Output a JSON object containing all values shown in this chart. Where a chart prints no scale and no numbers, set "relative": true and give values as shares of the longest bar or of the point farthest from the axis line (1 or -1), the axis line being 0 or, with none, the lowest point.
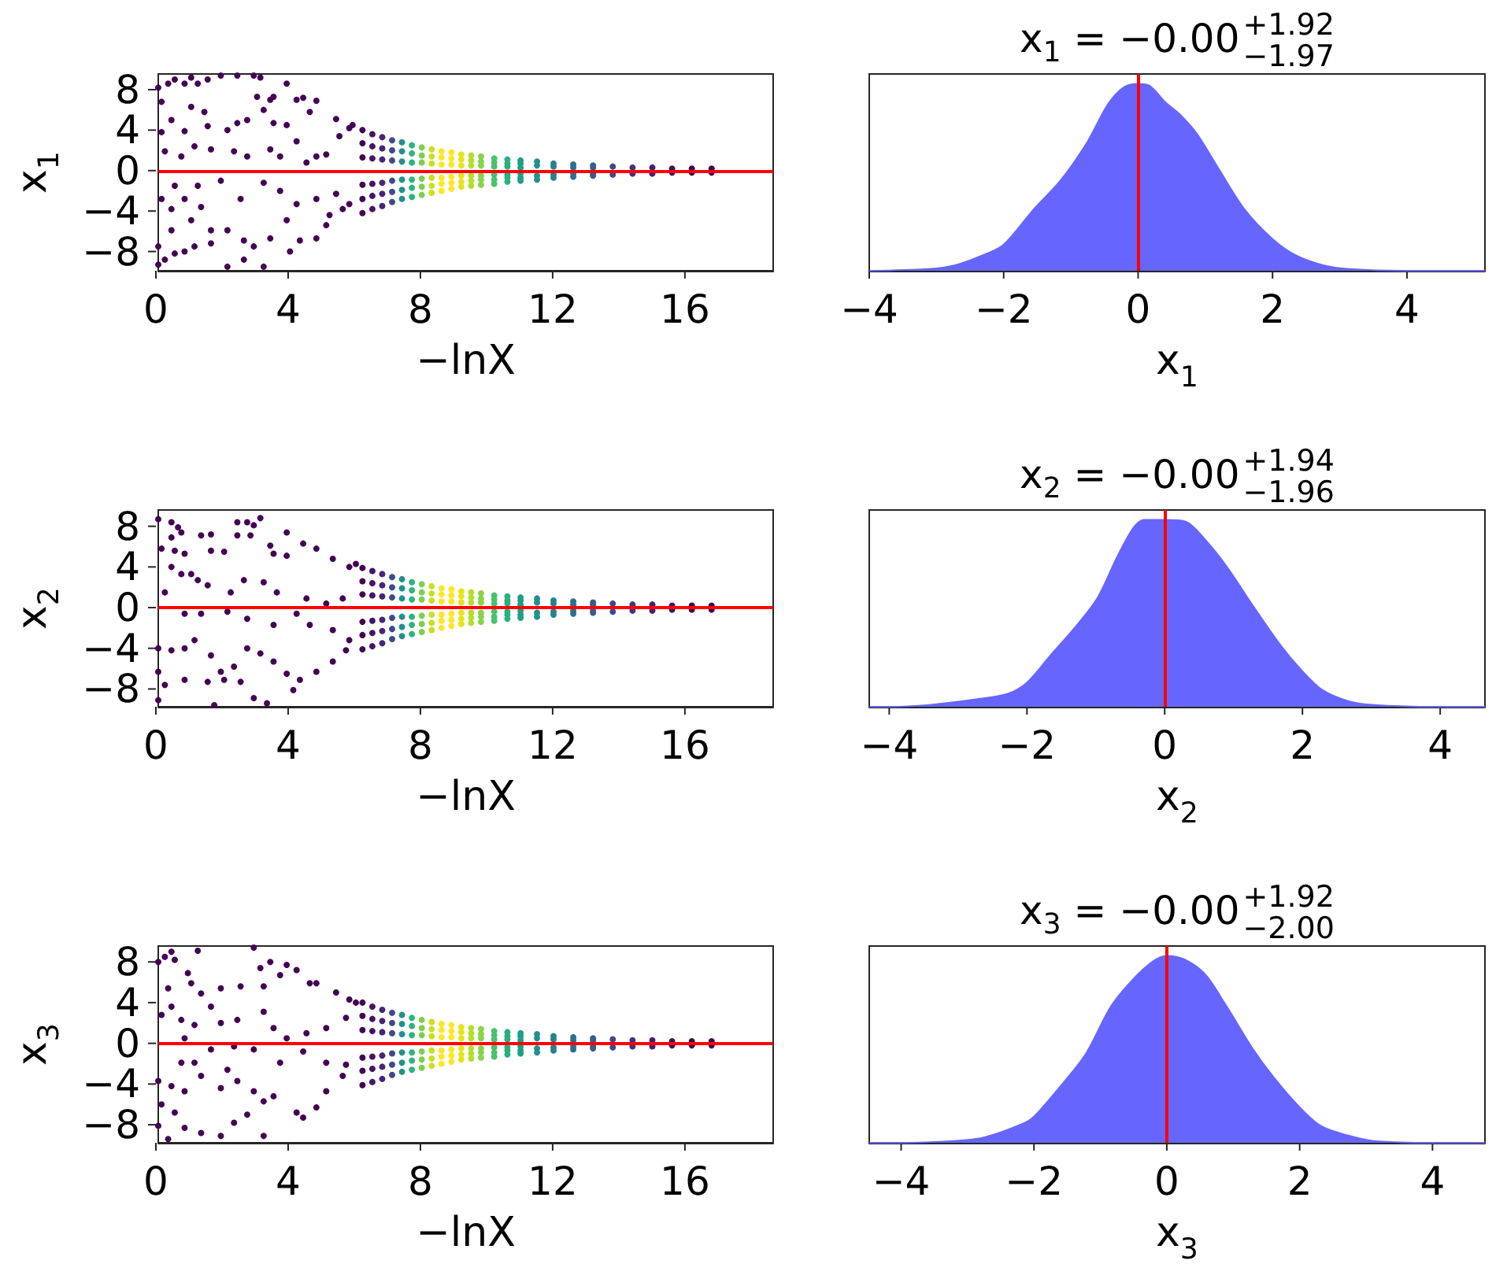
{
  "chart_data": [
    {
      "type": "scatter",
      "xlabel": "−lnX",
      "ylabel": "x$_{1}$",
      "xlim": [
        0,
        18.67
      ],
      "xticks": [
        0,
        4,
        8,
        12,
        16
      ],
      "ylim": [
        -9.9,
        9.55
      ],
      "yticks": [
        -8,
        -4,
        0,
        4,
        8
      ],
      "marker": "circle",
      "ref_lines": [
        {
          "axis": "y",
          "value": 0,
          "color": "#ff0000"
        }
      ],
      "series": [
        {
          "color": "#440154",
          "x": [
            0.0,
            0.1,
            0.3,
            0.5,
            0.8,
            1.0,
            1.2,
            1.5,
            1.9,
            2.4,
            2.9,
            3.1,
            3.0,
            3.4,
            3.5,
            3.9,
            4.2,
            4.4,
            4.8,
            4.6,
            5.4,
            5.8,
            5.9,
            0.1,
            0.4,
            0.8,
            1.0,
            1.4,
            1.5,
            2.1,
            2.4,
            2.7,
            3.2,
            3.5,
            3.9,
            4.2,
            4.8,
            5.1,
            5.5,
            0.2,
            0.7,
            1.1,
            1.6,
            2.3,
            2.7,
            3.4,
            3.7,
            4.5,
            0.1,
            0.4,
            0.8,
            1.3,
            0.5,
            1.2,
            1.9,
            2.5,
            3.2,
            3.7,
            4.2,
            4.8,
            5.4,
            5.8,
            1.0,
            1.6,
            2.1,
            2.6,
            2.9,
            3.4,
            3.9,
            4.3,
            4.8,
            5.1,
            0.4,
            0.0,
            0.2,
            0.5,
            0.8,
            0.0,
            2.1,
            2.6,
            3.2,
            4.0,
            1.6,
            1.1,
            5.2,
            5.6
          ],
          "values": [
            8.2,
            6.8,
            8.6,
            9.0,
            8.6,
            9.2,
            8.6,
            9.0,
            9.4,
            9.4,
            9.4,
            9.2,
            7.3,
            7.0,
            7.3,
            8.6,
            7.0,
            7.2,
            6.9,
            5.8,
            5.1,
            4.2,
            4.5,
            3.8,
            5.0,
            3.9,
            6.3,
            5.8,
            4.4,
            4.0,
            4.7,
            5.0,
            6.0,
            4.7,
            4.5,
            2.9,
            1.4,
            1.6,
            3.4,
            1.9,
            1.4,
            2.4,
            2.1,
            1.9,
            1.4,
            2.1,
            1.4,
            0.8,
            -2.8,
            -3.8,
            -2.8,
            -3.6,
            -1.5,
            -1.5,
            -1.0,
            -2.8,
            -1.2,
            -2.0,
            -3.3,
            -2.8,
            -2.3,
            -3.3,
            -4.9,
            -5.9,
            -5.9,
            -6.9,
            -7.5,
            -6.7,
            -4.9,
            -6.9,
            -6.7,
            -5.4,
            -5.9,
            -7.5,
            -8.8,
            -8.2,
            -8.0,
            -9.3,
            -9.5,
            -8.8,
            -9.5,
            -8.0,
            -7.2,
            -7.5,
            -4.4,
            -3.8
          ]
        },
        {
          "x": [
            6.2,
            6.2,
            6.2,
            6.2,
            6.2,
            6.2,
            6.5,
            6.5,
            6.5,
            6.5,
            6.5,
            6.5,
            6.8,
            6.8,
            6.8,
            6.8,
            6.8,
            6.8,
            7.1,
            7.1,
            7.1,
            7.1,
            7.1,
            7.1,
            7.4,
            7.4,
            7.4,
            7.4,
            7.4,
            7.4,
            7.7,
            7.7,
            7.7,
            7.7,
            7.7,
            7.7,
            8.0,
            8.0,
            8.0,
            8.0,
            8.0,
            8.0,
            8.3,
            8.3,
            8.3,
            8.3,
            8.3,
            8.3,
            8.6,
            8.6,
            8.6,
            8.6,
            8.6,
            8.6,
            8.9,
            8.9,
            8.9,
            8.9,
            8.9,
            8.9,
            9.2,
            9.2,
            9.2,
            9.2,
            9.2,
            9.2,
            9.5,
            9.5,
            9.5,
            9.5,
            9.5,
            9.5,
            9.8,
            9.8,
            9.8,
            9.8,
            9.8,
            9.8,
            10.2,
            10.2,
            10.2,
            10.2,
            10.2,
            10.2,
            10.6,
            10.6,
            10.6,
            10.6,
            10.6,
            10.6,
            11.0,
            11.0,
            11.0,
            11.0,
            11.0,
            11.0,
            11.5,
            11.5,
            11.5,
            11.5,
            12.0,
            12.0,
            12.0,
            12.0,
            12.6,
            12.6,
            12.6,
            12.6,
            13.2,
            13.2,
            13.2,
            13.2,
            13.8,
            13.8,
            14.4,
            14.4,
            15.0,
            15.0,
            15.6,
            15.6,
            16.2,
            16.2,
            16.8,
            16.8
          ],
          "values": [
            4.0,
            2.7,
            1.3,
            -1.4,
            -2.8,
            -4.2,
            3.6,
            2.4,
            1.2,
            -1.3,
            -2.5,
            -3.8,
            3.3,
            2.2,
            1.1,
            -1.2,
            -2.3,
            -3.5,
            3.0,
            2.0,
            1.0,
            -1.0,
            -2.1,
            -3.1,
            2.8,
            1.9,
            0.9,
            -0.9,
            -1.9,
            -2.8,
            2.5,
            1.7,
            0.8,
            -0.9,
            -1.7,
            -2.6,
            2.3,
            1.5,
            0.8,
            -0.8,
            -1.6,
            -2.4,
            2.1,
            1.4,
            0.7,
            -0.7,
            -1.5,
            -2.2,
            1.9,
            1.3,
            0.6,
            -0.7,
            -1.3,
            -2.0,
            1.8,
            1.2,
            0.6,
            -0.6,
            -1.2,
            -1.8,
            1.6,
            1.1,
            0.5,
            -0.5,
            -1.1,
            -1.6,
            1.5,
            1.0,
            0.5,
            -0.5,
            -1.0,
            -1.5,
            1.4,
            0.9,
            0.5,
            -0.5,
            -0.9,
            -1.4,
            1.2,
            0.8,
            0.4,
            -0.4,
            -0.9,
            -1.3,
            1.1,
            0.7,
            0.4,
            -0.4,
            -0.7,
            -1.1,
            1.0,
            0.7,
            0.3,
            -0.3,
            -0.7,
            -1.0,
            0.9,
            0.5,
            -0.5,
            -0.9,
            0.7,
            0.4,
            -0.4,
            -0.7,
            0.6,
            0.3,
            -0.3,
            -0.6,
            0.5,
            0.3,
            -0.3,
            -0.5,
            0.4,
            -0.4,
            0.3,
            -0.3,
            0.3,
            -0.3,
            0.2,
            -0.2,
            0.2,
            -0.2,
            0.2,
            -0.2
          ],
          "colors": [
            "#440154",
            "#440154",
            "#440154",
            "#440154",
            "#440154",
            "#440154",
            "#471365",
            "#471365",
            "#471365",
            "#471365",
            "#471365",
            "#471365",
            "#482475",
            "#482475",
            "#482475",
            "#482475",
            "#482475",
            "#482475",
            "#3e4a89",
            "#3e4a89",
            "#3e4a89",
            "#3e4a89",
            "#3e4a89",
            "#3e4a89",
            "#21918c",
            "#21918c",
            "#21918c",
            "#21918c",
            "#21918c",
            "#21918c",
            "#2fb47c",
            "#2fb47c",
            "#2fb47c",
            "#2fb47c",
            "#2fb47c",
            "#2fb47c",
            "#7ad151",
            "#7ad151",
            "#7ad151",
            "#7ad151",
            "#7ad151",
            "#7ad151",
            "#c8e020",
            "#c8e020",
            "#c8e020",
            "#c8e020",
            "#c8e020",
            "#c8e020",
            "#fde725",
            "#fde725",
            "#fde725",
            "#fde725",
            "#fde725",
            "#fde725",
            "#fde725",
            "#fde725",
            "#fde725",
            "#fde725",
            "#fde725",
            "#fde725",
            "#e5e419",
            "#e5e419",
            "#e5e419",
            "#e5e419",
            "#e5e419",
            "#e5e419",
            "#b5de2b",
            "#b5de2b",
            "#b5de2b",
            "#b5de2b",
            "#b5de2b",
            "#b5de2b",
            "#86d549",
            "#86d549",
            "#86d549",
            "#86d549",
            "#86d549",
            "#86d549",
            "#4ac16d",
            "#4ac16d",
            "#4ac16d",
            "#4ac16d",
            "#4ac16d",
            "#4ac16d",
            "#2ab07f",
            "#2ab07f",
            "#2ab07f",
            "#2ab07f",
            "#2ab07f",
            "#2ab07f",
            "#1f9e89",
            "#1f9e89",
            "#1f9e89",
            "#1f9e89",
            "#1f9e89",
            "#1f9e89",
            "#21918c",
            "#21918c",
            "#21918c",
            "#21918c",
            "#26828e",
            "#26828e",
            "#26828e",
            "#26828e",
            "#2d708e",
            "#2d708e",
            "#2d708e",
            "#2d708e",
            "#365d8d",
            "#365d8d",
            "#365d8d",
            "#365d8d",
            "#3e4989",
            "#3e4989",
            "#46327e",
            "#46327e",
            "#481f70",
            "#481f70",
            "#470d60",
            "#470d60",
            "#440154",
            "#440154",
            "#440154",
            "#440154"
          ]
        }
      ]
    },
    {
      "type": "area",
      "title": "x$_{1}$ = −0.00$^{+1.92}$$_{−1.97}$",
      "xlabel": "x$_{1}$",
      "xlim": [
        -4.0,
        5.16
      ],
      "xticks": [
        -4,
        -2,
        0,
        2,
        4
      ],
      "relative": true,
      "tick_labels": "x",
      "ref_lines": [
        {
          "axis": "x",
          "value": 0,
          "color": "#ff0000"
        }
      ],
      "color": "#6666ff",
      "x": [
        -4.0,
        -3.11,
        -2.72,
        -2.33,
        -2.0,
        -1.55,
        -1.16,
        -0.77,
        -0.45,
        -0.22,
        0,
        0.17,
        0.41,
        0.64,
        0.88,
        1.19,
        1.58,
        2.0,
        2.36,
        2.75,
        3.14,
        4.0,
        5.16
      ],
      "values": [
        0,
        0.01,
        0.03,
        0.08,
        0.14,
        0.33,
        0.48,
        0.68,
        0.89,
        0.98,
        1,
        0.99,
        0.9,
        0.83,
        0.73,
        0.55,
        0.33,
        0.17,
        0.08,
        0.03,
        0.01,
        0,
        0
      ]
    },
    {
      "type": "scatter",
      "xlabel": "−lnX",
      "ylabel": "x$_{2}$",
      "xlim": [
        0,
        18.67
      ],
      "xticks": [
        0,
        4,
        8,
        12,
        16
      ],
      "ylim": [
        -9.75,
        9.6
      ],
      "yticks": [
        -8,
        -4,
        0,
        4,
        8
      ],
      "marker": "circle",
      "ref_lines": [
        {
          "axis": "y",
          "value": 0,
          "color": "#ff0000"
        }
      ],
      "series": [
        {
          "color": "#440154",
          "x": [
            0.0,
            0.4,
            0.6,
            0.7,
            0.4,
            0.1,
            0.5,
            0.8,
            1.3,
            1.6,
            1.6,
            2.0,
            2.4,
            2.7,
            2.9,
            3.1,
            2.4,
            2.8,
            3.4,
            3.5,
            3.9,
            3.9,
            4.4,
            4.8,
            5.3,
            5.8,
            6.0,
            0.4,
            0.7,
            1.0,
            1.2,
            1.5,
            2.2,
            2.6,
            3.2,
            3.6,
            4.5,
            5.1,
            5.6,
            0.2,
            0.8,
            1.3,
            2.1,
            2.7,
            3.5,
            4.2,
            4.6,
            5.3,
            5.8,
            0.0,
            0.4,
            0.8,
            1.1,
            1.6,
            1.9,
            2.3,
            2.7,
            3.1,
            3.5,
            3.9,
            4.3,
            4.8,
            5.3,
            5.7,
            0.0,
            0.2,
            0.8,
            1.5,
            2.0,
            2.5,
            2.9,
            3.3,
            1.7,
            0.0,
            4.1
          ],
          "values": [
            8.7,
            8.4,
            7.9,
            7.4,
            6.9,
            5.8,
            5.6,
            5.3,
            7.1,
            7.2,
            5.6,
            5.5,
            8.4,
            8.4,
            8.1,
            8.8,
            7.1,
            7.1,
            6.1,
            5.3,
            7.4,
            5.1,
            6.3,
            5.8,
            4.8,
            4.0,
            4.3,
            4.0,
            3.3,
            3.3,
            2.7,
            2.2,
            1.5,
            2.7,
            2.5,
            1.5,
            0.9,
            0.4,
            0.9,
            1.5,
            -0.6,
            -0.6,
            -0.4,
            -1.1,
            -1.7,
            -0.6,
            -1.7,
            -2.2,
            -3.2,
            -4.0,
            -4.2,
            -4.0,
            -3.2,
            -4.7,
            -6.3,
            -5.8,
            -4.0,
            -4.5,
            -5.3,
            -6.5,
            -7.1,
            -6.3,
            -5.3,
            -4.2,
            -6.3,
            -7.6,
            -7.1,
            -7.3,
            -7.1,
            -7.3,
            -8.9,
            -9.4,
            -9.6,
            -9.1,
            -8.1
          ]
        },
        {
          "x": [
            6.2,
            6.2,
            6.2,
            6.2,
            6.2,
            6.2,
            6.5,
            6.5,
            6.5,
            6.5,
            6.5,
            6.5,
            6.8,
            6.8,
            6.8,
            6.8,
            6.8,
            6.8,
            7.1,
            7.1,
            7.1,
            7.1,
            7.1,
            7.1,
            7.4,
            7.4,
            7.4,
            7.4,
            7.4,
            7.4,
            7.7,
            7.7,
            7.7,
            7.7,
            7.7,
            7.7,
            8.0,
            8.0,
            8.0,
            8.0,
            8.0,
            8.0,
            8.3,
            8.3,
            8.3,
            8.3,
            8.3,
            8.3,
            8.6,
            8.6,
            8.6,
            8.6,
            8.6,
            8.6,
            8.9,
            8.9,
            8.9,
            8.9,
            8.9,
            8.9,
            9.2,
            9.2,
            9.2,
            9.2,
            9.2,
            9.2,
            9.5,
            9.5,
            9.5,
            9.5,
            9.5,
            9.5,
            9.8,
            9.8,
            9.8,
            9.8,
            9.8,
            9.8,
            10.2,
            10.2,
            10.2,
            10.2,
            10.2,
            10.2,
            10.6,
            10.6,
            10.6,
            10.6,
            10.6,
            10.6,
            11.0,
            11.0,
            11.0,
            11.0,
            11.0,
            11.0,
            11.5,
            11.5,
            11.5,
            11.5,
            12.0,
            12.0,
            12.0,
            12.0,
            12.6,
            12.6,
            12.6,
            12.6,
            13.2,
            13.2,
            13.2,
            13.2,
            13.8,
            13.8,
            14.4,
            14.4,
            15.0,
            15.0,
            15.6,
            15.6,
            16.2,
            16.2,
            16.8,
            16.8
          ],
          "values": [
            3.9,
            2.6,
            1.3,
            -1.4,
            -2.7,
            -4.1,
            3.6,
            2.4,
            1.2,
            -1.3,
            -2.5,
            -3.8,
            3.3,
            2.2,
            1.1,
            -1.2,
            -2.3,
            -3.5,
            3.0,
            2.0,
            1.0,
            -1.0,
            -2.1,
            -3.1,
            2.8,
            1.9,
            0.9,
            -0.9,
            -1.9,
            -2.8,
            2.5,
            1.7,
            0.8,
            -0.9,
            -1.7,
            -2.6,
            2.3,
            1.5,
            0.8,
            -0.8,
            -1.6,
            -2.4,
            2.1,
            1.4,
            0.7,
            -0.7,
            -1.5,
            -2.2,
            1.9,
            1.3,
            0.6,
            -0.7,
            -1.3,
            -2.0,
            1.8,
            1.2,
            0.6,
            -0.6,
            -1.2,
            -1.8,
            1.6,
            1.1,
            0.5,
            -0.5,
            -1.1,
            -1.6,
            1.5,
            1.0,
            0.5,
            -0.5,
            -1.0,
            -1.5,
            1.4,
            0.9,
            0.5,
            -0.5,
            -0.9,
            -1.4,
            1.2,
            0.8,
            0.4,
            -0.4,
            -0.9,
            -1.3,
            1.1,
            0.7,
            0.4,
            -0.4,
            -0.7,
            -1.1,
            1.0,
            0.7,
            0.3,
            -0.3,
            -0.7,
            -1.0,
            0.9,
            0.5,
            -0.5,
            -0.9,
            0.7,
            0.4,
            -0.4,
            -0.7,
            0.6,
            0.3,
            -0.3,
            -0.6,
            0.5,
            0.3,
            -0.3,
            -0.5,
            0.4,
            -0.4,
            0.3,
            -0.3,
            0.3,
            -0.3,
            0.2,
            -0.2,
            0.2,
            -0.2,
            0.2,
            -0.2
          ],
          "colors": [
            "#440154",
            "#440154",
            "#440154",
            "#440154",
            "#440154",
            "#440154",
            "#471365",
            "#471365",
            "#471365",
            "#471365",
            "#471365",
            "#471365",
            "#482475",
            "#482475",
            "#482475",
            "#482475",
            "#482475",
            "#482475",
            "#3e4a89",
            "#3e4a89",
            "#3e4a89",
            "#3e4a89",
            "#3e4a89",
            "#3e4a89",
            "#21918c",
            "#21918c",
            "#21918c",
            "#21918c",
            "#21918c",
            "#21918c",
            "#2fb47c",
            "#2fb47c",
            "#2fb47c",
            "#2fb47c",
            "#2fb47c",
            "#2fb47c",
            "#7ad151",
            "#7ad151",
            "#7ad151",
            "#7ad151",
            "#7ad151",
            "#7ad151",
            "#c8e020",
            "#c8e020",
            "#c8e020",
            "#c8e020",
            "#c8e020",
            "#c8e020",
            "#fde725",
            "#fde725",
            "#fde725",
            "#fde725",
            "#fde725",
            "#fde725",
            "#fde725",
            "#fde725",
            "#fde725",
            "#fde725",
            "#fde725",
            "#fde725",
            "#e5e419",
            "#e5e419",
            "#e5e419",
            "#e5e419",
            "#e5e419",
            "#e5e419",
            "#b5de2b",
            "#b5de2b",
            "#b5de2b",
            "#b5de2b",
            "#b5de2b",
            "#b5de2b",
            "#86d549",
            "#86d549",
            "#86d549",
            "#86d549",
            "#86d549",
            "#86d549",
            "#4ac16d",
            "#4ac16d",
            "#4ac16d",
            "#4ac16d",
            "#4ac16d",
            "#4ac16d",
            "#2ab07f",
            "#2ab07f",
            "#2ab07f",
            "#2ab07f",
            "#2ab07f",
            "#2ab07f",
            "#1f9e89",
            "#1f9e89",
            "#1f9e89",
            "#1f9e89",
            "#1f9e89",
            "#1f9e89",
            "#21918c",
            "#21918c",
            "#21918c",
            "#21918c",
            "#26828e",
            "#26828e",
            "#26828e",
            "#26828e",
            "#2d708e",
            "#2d708e",
            "#2d708e",
            "#2d708e",
            "#365d8d",
            "#365d8d",
            "#365d8d",
            "#365d8d",
            "#3e4989",
            "#3e4989",
            "#46327e",
            "#46327e",
            "#481f70",
            "#481f70",
            "#470d60",
            "#470d60",
            "#440154",
            "#440154",
            "#440154",
            "#440154"
          ]
        }
      ]
    },
    {
      "type": "area",
      "title": "x$_{2}$ = −0.00$^{+1.94}$$_{−1.96}$",
      "xlabel": "x$_{2}$",
      "xlim": [
        -4.29,
        4.65
      ],
      "xticks": [
        -4,
        -2,
        0,
        2,
        4
      ],
      "relative": true,
      "tick_labels": "x",
      "ref_lines": [
        {
          "axis": "x",
          "value": 0,
          "color": "#ff0000"
        }
      ],
      "color": "#6666ff",
      "x": [
        -4.29,
        -3.99,
        -3.42,
        -2.74,
        -2.28,
        -2.0,
        -1.67,
        -1.29,
        -0.98,
        -0.68,
        -0.45,
        -0.3,
        0,
        0.31,
        0.62,
        0.92,
        1.3,
        1.68,
        2.0,
        2.29,
        2.67,
        3.05,
        4.0,
        4.65
      ],
      "values": [
        0,
        0,
        0.01,
        0.04,
        0.07,
        0.13,
        0.27,
        0.43,
        0.58,
        0.81,
        0.96,
        1,
        1,
        0.99,
        0.88,
        0.74,
        0.53,
        0.33,
        0.19,
        0.09,
        0.03,
        0.01,
        0,
        0
      ]
    },
    {
      "type": "scatter",
      "xlabel": "−lnX",
      "ylabel": "x$_{3}$",
      "xlim": [
        0,
        18.67
      ],
      "xticks": [
        0,
        4,
        8,
        12,
        16
      ],
      "ylim": [
        -9.77,
        9.56
      ],
      "yticks": [
        -8,
        -4,
        0,
        4,
        8
      ],
      "marker": "circle",
      "ref_lines": [
        {
          "axis": "y",
          "value": 0,
          "color": "#ff0000"
        }
      ],
      "series": [
        {
          "color": "#440154",
          "x": [
            0.0,
            0.2,
            0.4,
            0.5,
            0.3,
            0.4,
            0.9,
            1.0,
            1.2,
            1.3,
            1.6,
            1.9,
            2.5,
            2.9,
            3.1,
            3.2,
            3.4,
            3.7,
            3.9,
            4.2,
            4.6,
            4.8,
            5.4,
            5.8,
            6.0,
            0.1,
            0.7,
            1.1,
            1.9,
            2.4,
            3.2,
            3.5,
            3.9,
            4.5,
            5.1,
            5.7,
            0.8,
            1.6,
            2.3,
            2.9,
            3.7,
            4.4,
            5.1,
            5.7,
            0.7,
            1.1,
            0.0,
            0.4,
            0.8,
            1.3,
            1.9,
            2.1,
            2.4,
            2.9,
            3.2,
            3.5,
            4.2,
            4.4,
            4.8,
            5.1,
            5.6,
            0.1,
            0.5,
            0.0,
            0.8,
            1.3,
            1.9,
            2.3,
            3.2,
            0.3,
            2.7
          ],
          "values": [
            8.0,
            8.5,
            9.0,
            8.2,
            5.4,
            3.6,
            6.9,
            5.9,
            9.1,
            4.9,
            3.6,
            5.4,
            5.6,
            9.4,
            7.4,
            5.6,
            8.0,
            6.7,
            7.7,
            7.2,
            5.9,
            5.9,
            5.0,
            4.3,
            4.0,
            2.8,
            2.3,
            1.8,
            2.0,
            2.3,
            3.1,
            1.5,
            0.5,
            1.0,
            1.5,
            2.5,
            0.5,
            -0.6,
            -0.3,
            -0.6,
            -1.9,
            -0.8,
            -1.9,
            -2.1,
            -1.9,
            -1.9,
            -3.7,
            -4.2,
            -4.7,
            -3.2,
            -4.4,
            -2.6,
            -3.7,
            -4.7,
            -5.7,
            -5.2,
            -6.8,
            -7.3,
            -6.3,
            -4.7,
            -3.2,
            -6.0,
            -6.8,
            -8.1,
            -8.3,
            -8.8,
            -9.1,
            -7.8,
            -9.1,
            -9.4,
            -7.0
          ]
        },
        {
          "x": [
            6.2,
            6.2,
            6.2,
            6.2,
            6.2,
            6.2,
            6.5,
            6.5,
            6.5,
            6.5,
            6.5,
            6.5,
            6.8,
            6.8,
            6.8,
            6.8,
            6.8,
            6.8,
            7.1,
            7.1,
            7.1,
            7.1,
            7.1,
            7.1,
            7.4,
            7.4,
            7.4,
            7.4,
            7.4,
            7.4,
            7.7,
            7.7,
            7.7,
            7.7,
            7.7,
            7.7,
            8.0,
            8.0,
            8.0,
            8.0,
            8.0,
            8.0,
            8.3,
            8.3,
            8.3,
            8.3,
            8.3,
            8.3,
            8.6,
            8.6,
            8.6,
            8.6,
            8.6,
            8.6,
            8.9,
            8.9,
            8.9,
            8.9,
            8.9,
            8.9,
            9.2,
            9.2,
            9.2,
            9.2,
            9.2,
            9.2,
            9.5,
            9.5,
            9.5,
            9.5,
            9.5,
            9.5,
            9.8,
            9.8,
            9.8,
            9.8,
            9.8,
            9.8,
            10.2,
            10.2,
            10.2,
            10.2,
            10.2,
            10.2,
            10.6,
            10.6,
            10.6,
            10.6,
            10.6,
            10.6,
            11.0,
            11.0,
            11.0,
            11.0,
            11.0,
            11.0,
            11.5,
            11.5,
            11.5,
            11.5,
            12.0,
            12.0,
            12.0,
            12.0,
            12.6,
            12.6,
            12.6,
            12.6,
            13.2,
            13.2,
            13.2,
            13.2,
            13.8,
            13.8,
            14.4,
            14.4,
            15.0,
            15.0,
            15.6,
            15.6,
            16.2,
            16.2,
            16.8,
            16.8
          ],
          "values": [
            4.0,
            2.7,
            1.3,
            -1.4,
            -2.7,
            -4.1,
            3.6,
            2.4,
            1.2,
            -1.3,
            -2.5,
            -3.8,
            3.3,
            2.2,
            1.1,
            -1.2,
            -2.3,
            -3.5,
            3.0,
            2.0,
            1.0,
            -1.0,
            -2.1,
            -3.1,
            2.8,
            1.9,
            0.9,
            -0.9,
            -1.9,
            -2.8,
            2.5,
            1.7,
            0.8,
            -0.9,
            -1.7,
            -2.6,
            2.3,
            1.5,
            0.8,
            -0.8,
            -1.6,
            -2.4,
            2.1,
            1.4,
            0.7,
            -0.7,
            -1.5,
            -2.2,
            1.9,
            1.3,
            0.6,
            -0.7,
            -1.3,
            -2.0,
            1.8,
            1.2,
            0.6,
            -0.6,
            -1.2,
            -1.8,
            1.6,
            1.1,
            0.5,
            -0.5,
            -1.1,
            -1.6,
            1.5,
            1.0,
            0.5,
            -0.5,
            -1.0,
            -1.5,
            1.4,
            0.9,
            0.5,
            -0.5,
            -0.9,
            -1.4,
            1.2,
            0.8,
            0.4,
            -0.4,
            -0.9,
            -1.3,
            1.1,
            0.7,
            0.4,
            -0.4,
            -0.7,
            -1.1,
            1.0,
            0.7,
            0.3,
            -0.3,
            -0.7,
            -1.0,
            0.9,
            0.5,
            -0.5,
            -0.9,
            0.7,
            0.4,
            -0.4,
            -0.7,
            0.6,
            0.3,
            -0.3,
            -0.6,
            0.5,
            0.3,
            -0.3,
            -0.5,
            0.4,
            -0.4,
            0.3,
            -0.3,
            0.3,
            -0.3,
            0.2,
            -0.2,
            0.2,
            -0.2,
            0.2,
            -0.2
          ],
          "colors": [
            "#440154",
            "#440154",
            "#440154",
            "#440154",
            "#440154",
            "#440154",
            "#471365",
            "#471365",
            "#471365",
            "#471365",
            "#471365",
            "#471365",
            "#482475",
            "#482475",
            "#482475",
            "#482475",
            "#482475",
            "#482475",
            "#3e4a89",
            "#3e4a89",
            "#3e4a89",
            "#3e4a89",
            "#3e4a89",
            "#3e4a89",
            "#21918c",
            "#21918c",
            "#21918c",
            "#21918c",
            "#21918c",
            "#21918c",
            "#2fb47c",
            "#2fb47c",
            "#2fb47c",
            "#2fb47c",
            "#2fb47c",
            "#2fb47c",
            "#7ad151",
            "#7ad151",
            "#7ad151",
            "#7ad151",
            "#7ad151",
            "#7ad151",
            "#c8e020",
            "#c8e020",
            "#c8e020",
            "#c8e020",
            "#c8e020",
            "#c8e020",
            "#fde725",
            "#fde725",
            "#fde725",
            "#fde725",
            "#fde725",
            "#fde725",
            "#fde725",
            "#fde725",
            "#fde725",
            "#fde725",
            "#fde725",
            "#fde725",
            "#e5e419",
            "#e5e419",
            "#e5e419",
            "#e5e419",
            "#e5e419",
            "#e5e419",
            "#b5de2b",
            "#b5de2b",
            "#b5de2b",
            "#b5de2b",
            "#b5de2b",
            "#b5de2b",
            "#86d549",
            "#86d549",
            "#86d549",
            "#86d549",
            "#86d549",
            "#86d549",
            "#4ac16d",
            "#4ac16d",
            "#4ac16d",
            "#4ac16d",
            "#4ac16d",
            "#4ac16d",
            "#2ab07f",
            "#2ab07f",
            "#2ab07f",
            "#2ab07f",
            "#2ab07f",
            "#2ab07f",
            "#1f9e89",
            "#1f9e89",
            "#1f9e89",
            "#1f9e89",
            "#1f9e89",
            "#1f9e89",
            "#21918c",
            "#21918c",
            "#21918c",
            "#21918c",
            "#26828e",
            "#26828e",
            "#26828e",
            "#26828e",
            "#2d708e",
            "#2d708e",
            "#2d708e",
            "#2d708e",
            "#365d8d",
            "#365d8d",
            "#365d8d",
            "#365d8d",
            "#3e4989",
            "#3e4989",
            "#46327e",
            "#46327e",
            "#481f70",
            "#481f70",
            "#470d60",
            "#470d60",
            "#440154",
            "#440154",
            "#440154",
            "#440154"
          ]
        }
      ]
    },
    {
      "type": "area",
      "title": "x$_{3}$ = −0.00$^{+1.92}$$_{−2.00}$",
      "xlabel": "x$_{3}$",
      "xlim": [
        -4.48,
        4.79
      ],
      "xticks": [
        -4,
        -2,
        0,
        2,
        4
      ],
      "relative": true,
      "tick_labels": "x",
      "ref_lines": [
        {
          "axis": "x",
          "value": 0,
          "color": "#ff0000"
        }
      ],
      "color": "#6666ff",
      "x": [
        -4.48,
        -4.02,
        -3.21,
        -2.74,
        -2.18,
        -2.0,
        -1.63,
        -1.23,
        -0.84,
        -0.52,
        -0.21,
        0,
        0.27,
        0.58,
        0.9,
        1.3,
        1.61,
        2.0,
        2.32,
        2.72,
        3.11,
        4.0,
        4.79
      ],
      "values": [
        0,
        0,
        0.01,
        0.03,
        0.1,
        0.14,
        0.29,
        0.47,
        0.73,
        0.87,
        0.97,
        1,
        0.98,
        0.9,
        0.73,
        0.5,
        0.35,
        0.19,
        0.09,
        0.04,
        0.01,
        0,
        0
      ]
    }
  ]
}
